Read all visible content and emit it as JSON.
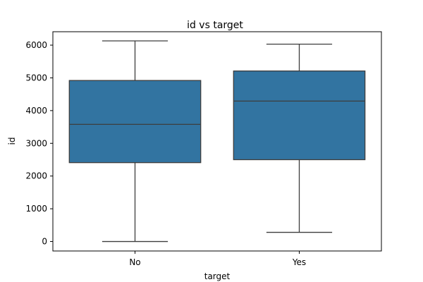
{
  "chart_data": {
    "type": "box",
    "title": "id vs target",
    "xlabel": "target",
    "ylabel": "id",
    "categories": [
      "No",
      "Yes"
    ],
    "boxes": [
      {
        "category": "No",
        "min": 0,
        "q1": 2410,
        "median": 3580,
        "q3": 4920,
        "max": 6130
      },
      {
        "category": "Yes",
        "min": 280,
        "q1": 2500,
        "median": 4290,
        "q3": 5210,
        "max": 6030
      }
    ],
    "yticks": [
      0,
      1000,
      2000,
      3000,
      4000,
      5000,
      6000
    ],
    "ylim": [
      -290,
      6410
    ],
    "grid": false,
    "legend": "none",
    "colors": {
      "box_fill": "#3274a1",
      "line": "#3d3d3d",
      "axis": "#000000"
    }
  }
}
